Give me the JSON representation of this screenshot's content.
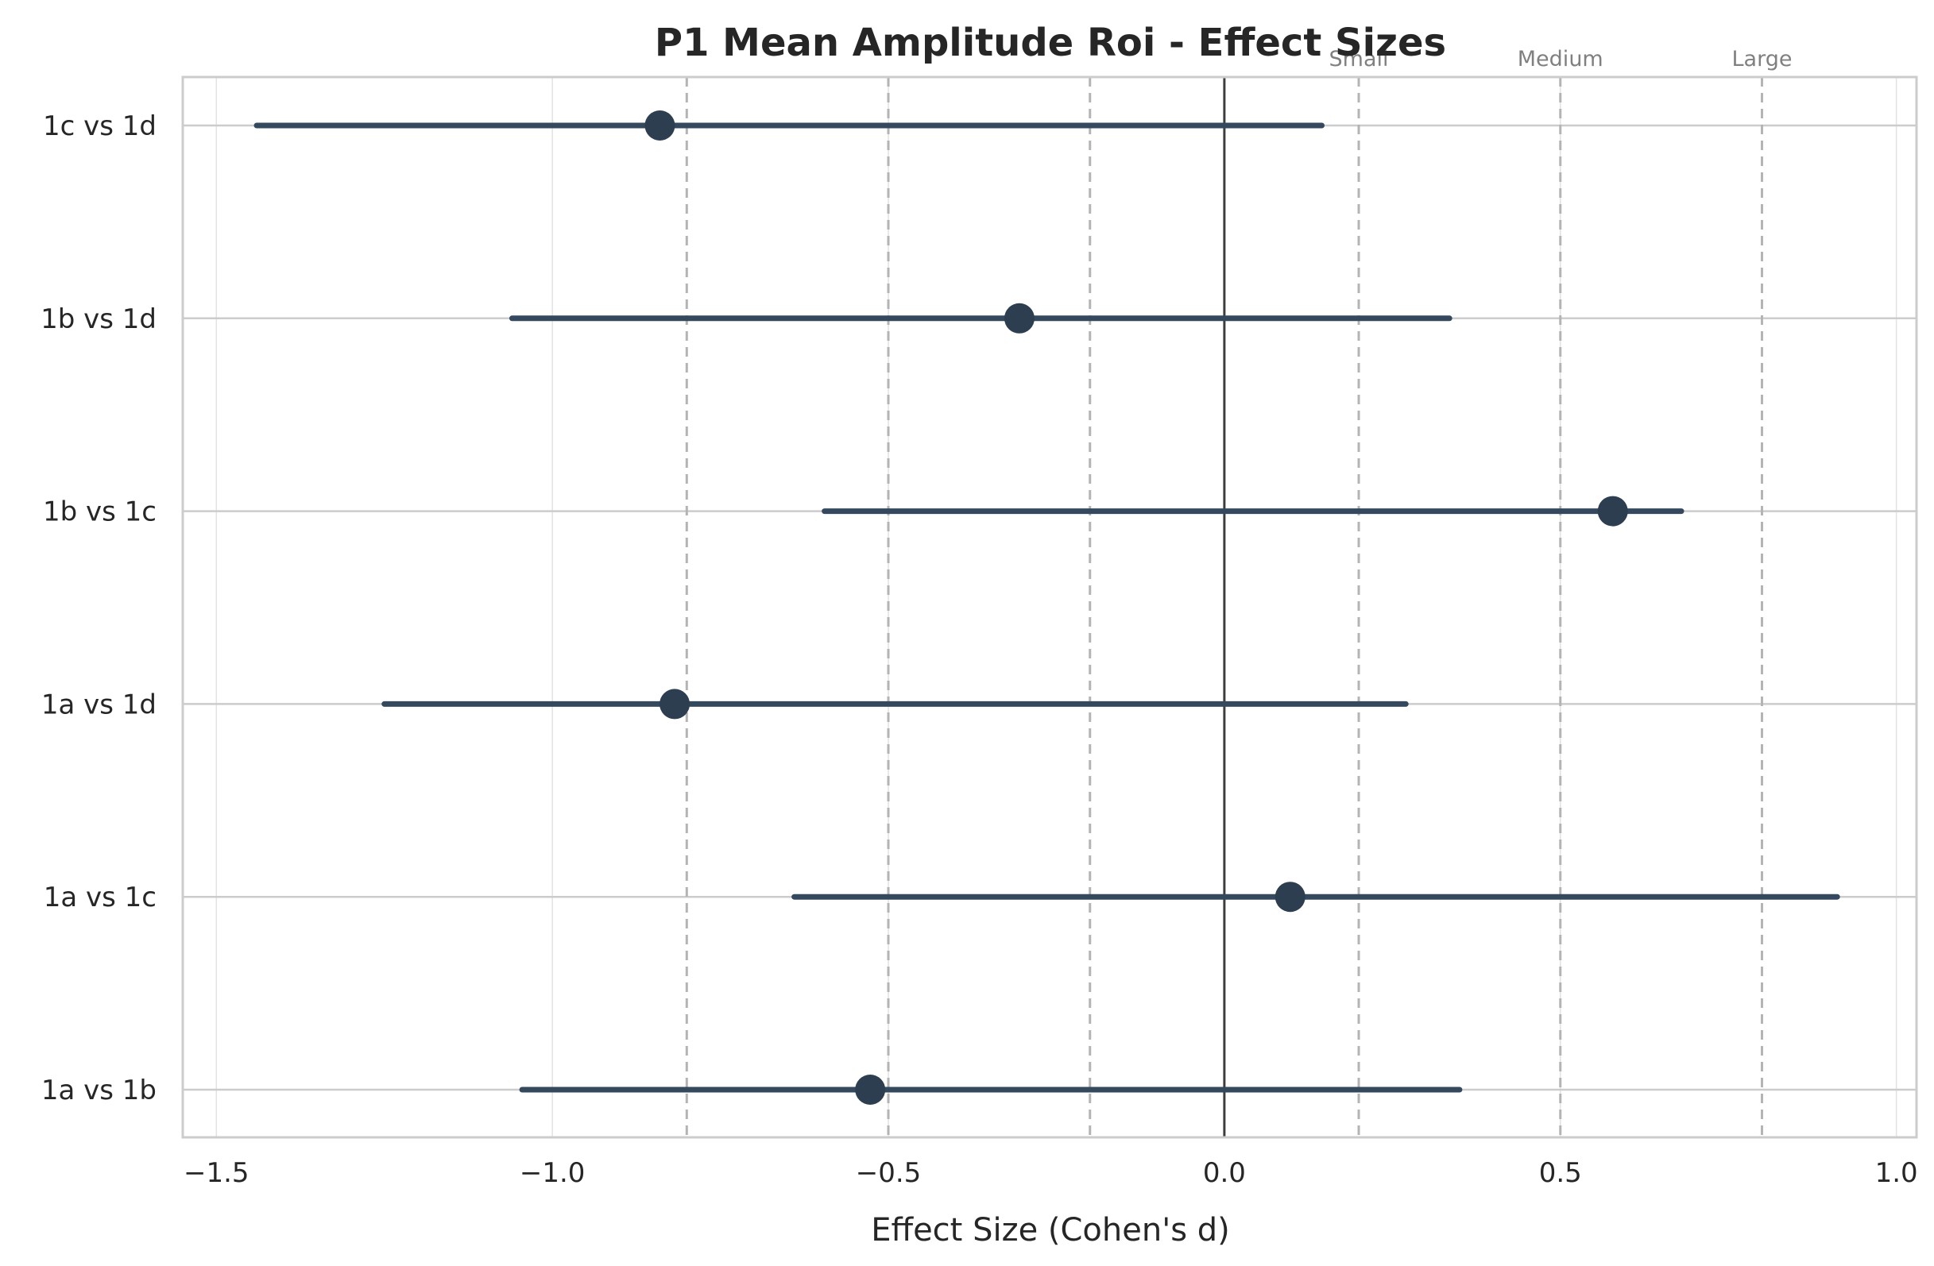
{
  "chart_data": {
    "type": "forest",
    "title": "P1 Mean Amplitude Roi - Effect Sizes",
    "xlabel": "Effect Size (Cohen's d)",
    "ylabel": "",
    "xlim": [
      -1.55,
      1.03
    ],
    "x_ticks": [
      -1.5,
      -1.0,
      -0.5,
      0.0,
      0.5,
      1.0
    ],
    "x_tick_labels": [
      "−1.5",
      "−1.0",
      "−0.5",
      "0.0",
      "0.5",
      "1.0"
    ],
    "grid": true,
    "zero_line": 0.0,
    "reference_lines": [
      {
        "value": -0.8,
        "label": ""
      },
      {
        "value": -0.5,
        "label": ""
      },
      {
        "value": -0.2,
        "label": ""
      },
      {
        "value": 0.2,
        "label": "Small"
      },
      {
        "value": 0.5,
        "label": "Medium"
      },
      {
        "value": 0.8,
        "label": "Large"
      }
    ],
    "comparisons": [
      {
        "label": "1c vs 1d",
        "estimate": -0.84,
        "ci_lower": -1.44,
        "ci_upper": 0.145
      },
      {
        "label": "1b vs 1d",
        "estimate": -0.305,
        "ci_lower": -1.06,
        "ci_upper": 0.335
      },
      {
        "label": "1b vs 1c",
        "estimate": 0.578,
        "ci_lower": -0.595,
        "ci_upper": 0.68
      },
      {
        "label": "1a vs 1d",
        "estimate": -0.818,
        "ci_lower": -1.25,
        "ci_upper": 0.27
      },
      {
        "label": "1a vs 1c",
        "estimate": 0.098,
        "ci_lower": -0.64,
        "ci_upper": 0.912
      },
      {
        "label": "1a vs 1b",
        "estimate": -0.527,
        "ci_lower": -1.045,
        "ci_upper": 0.35
      }
    ],
    "colors": {
      "marker": "#2c3e50",
      "ci_line": "#34495e",
      "zero_line": "#2b2b2b",
      "reference_line": "#b4b4b4",
      "grid": "#cccccc",
      "frame": "#cccccc",
      "reference_label": "#808080",
      "text": "#262626"
    }
  }
}
